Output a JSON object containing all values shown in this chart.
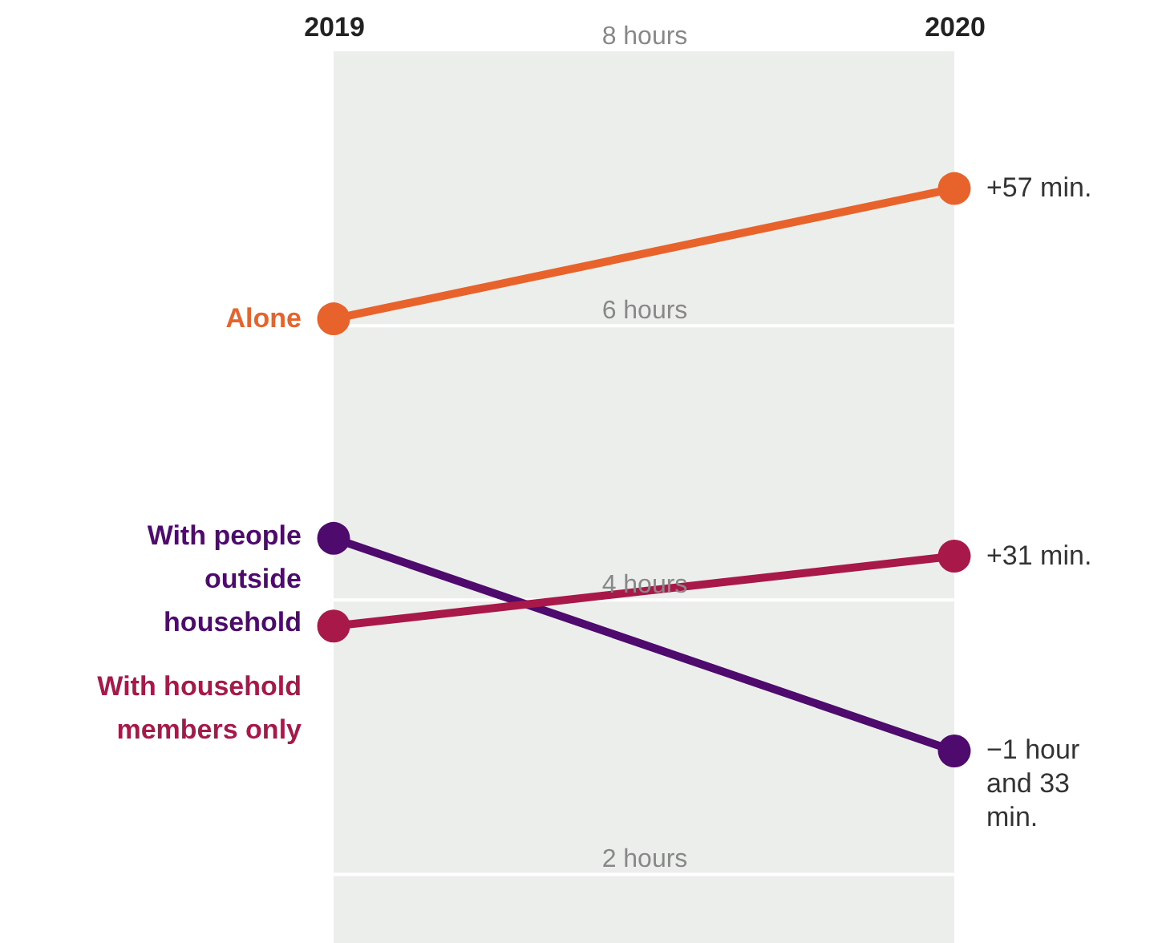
{
  "chart_data": {
    "type": "line",
    "categories": [
      "2019",
      "2020"
    ],
    "series": [
      {
        "name": "Alone",
        "color": "#e8632b",
        "values": [
          6.05,
          7.0
        ]
      },
      {
        "name": "With people outside household",
        "color": "#4f0a6e",
        "values": [
          4.45,
          2.9
        ]
      },
      {
        "name": "With household members only",
        "color": "#a8194a",
        "values": [
          3.81,
          4.32
        ]
      }
    ],
    "annotations": [
      {
        "text": "+57 min.",
        "x": "2020",
        "y": 7.0
      },
      {
        "text": "−1 hour and 33 min.",
        "x": "2020",
        "y": 2.9
      },
      {
        "text": "+31 min.",
        "x": "2020",
        "y": 4.32
      }
    ],
    "bands": [
      {
        "axis": "y",
        "from": 1.5,
        "to": 8.0,
        "color": "#eceeec"
      }
    ],
    "ref_lines": [
      {
        "axis": "y",
        "value": 2,
        "color": "#ffffff"
      },
      {
        "axis": "y",
        "value": 4,
        "color": "#ffffff"
      },
      {
        "axis": "y",
        "value": 6,
        "color": "#ffffff"
      }
    ],
    "ylim": [
      1.5,
      8.0
    ],
    "yticks": [
      {
        "value": 2,
        "label": "2 hours"
      },
      {
        "value": 4,
        "label": "4 hours"
      },
      {
        "value": 6,
        "label": "6 hours"
      },
      {
        "value": 8,
        "label": "8 hours"
      }
    ],
    "marker": "circle",
    "line_style": "solid"
  }
}
